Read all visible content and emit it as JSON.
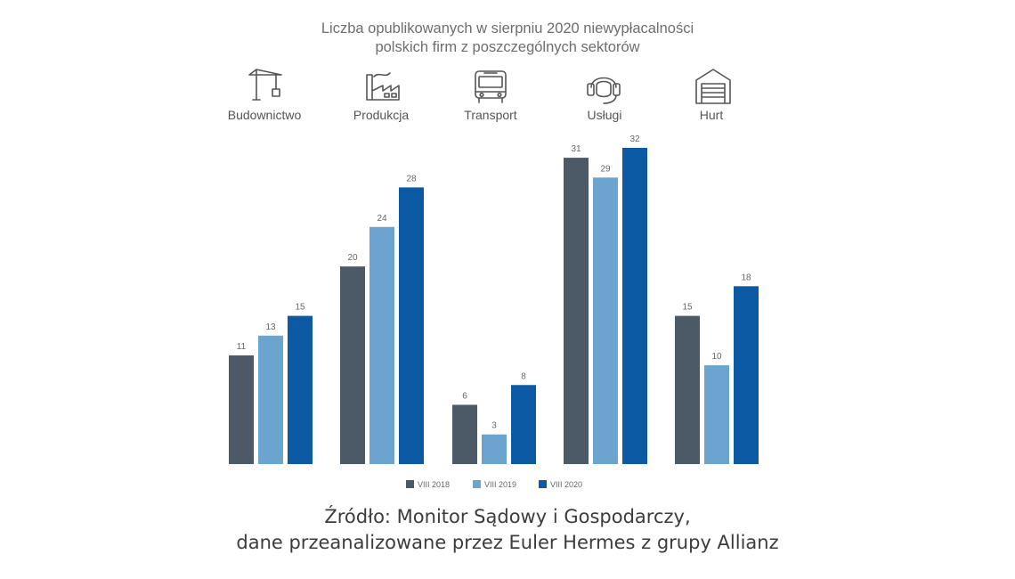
{
  "title_lines": [
    "Liczba opublikowanych w sierpniu 2020 niewypłacalności",
    "polskich firm z poszczególnych sektorów"
  ],
  "source_lines": [
    "Źródło: Monitor Sądowy i Gospodarczy,",
    "dane przeanalizowane przez Euler Hermes z grupy Allianz"
  ],
  "sector_icons": [
    "crane-icon",
    "factory-icon",
    "bus-icon",
    "headset-icon",
    "garage-icon"
  ],
  "colors": {
    "VIII 2018": "#4c5a68",
    "VIII 2019": "#6aa4cf",
    "VIII 2020": "#0b5aa3",
    "icon": "#555555",
    "label": "#555555",
    "value_label": "#666666"
  },
  "chart_data": {
    "type": "bar",
    "title": "Liczba opublikowanych w sierpniu 2020 niewypłacalności polskich firm z poszczególnych sektorów",
    "categories": [
      "Budownictwo",
      "Produkcja",
      "Transport",
      "Usługi",
      "Hurt"
    ],
    "series": [
      {
        "name": "VIII 2018",
        "values": [
          11,
          20,
          6,
          31,
          15
        ]
      },
      {
        "name": "VIII 2019",
        "values": [
          13,
          24,
          3,
          29,
          10
        ]
      },
      {
        "name": "VIII 2020",
        "values": [
          15,
          28,
          8,
          32,
          18
        ]
      }
    ],
    "ylim": [
      0,
      32
    ],
    "grid": false,
    "data_labels": true,
    "legend_position": "bottom-center"
  }
}
